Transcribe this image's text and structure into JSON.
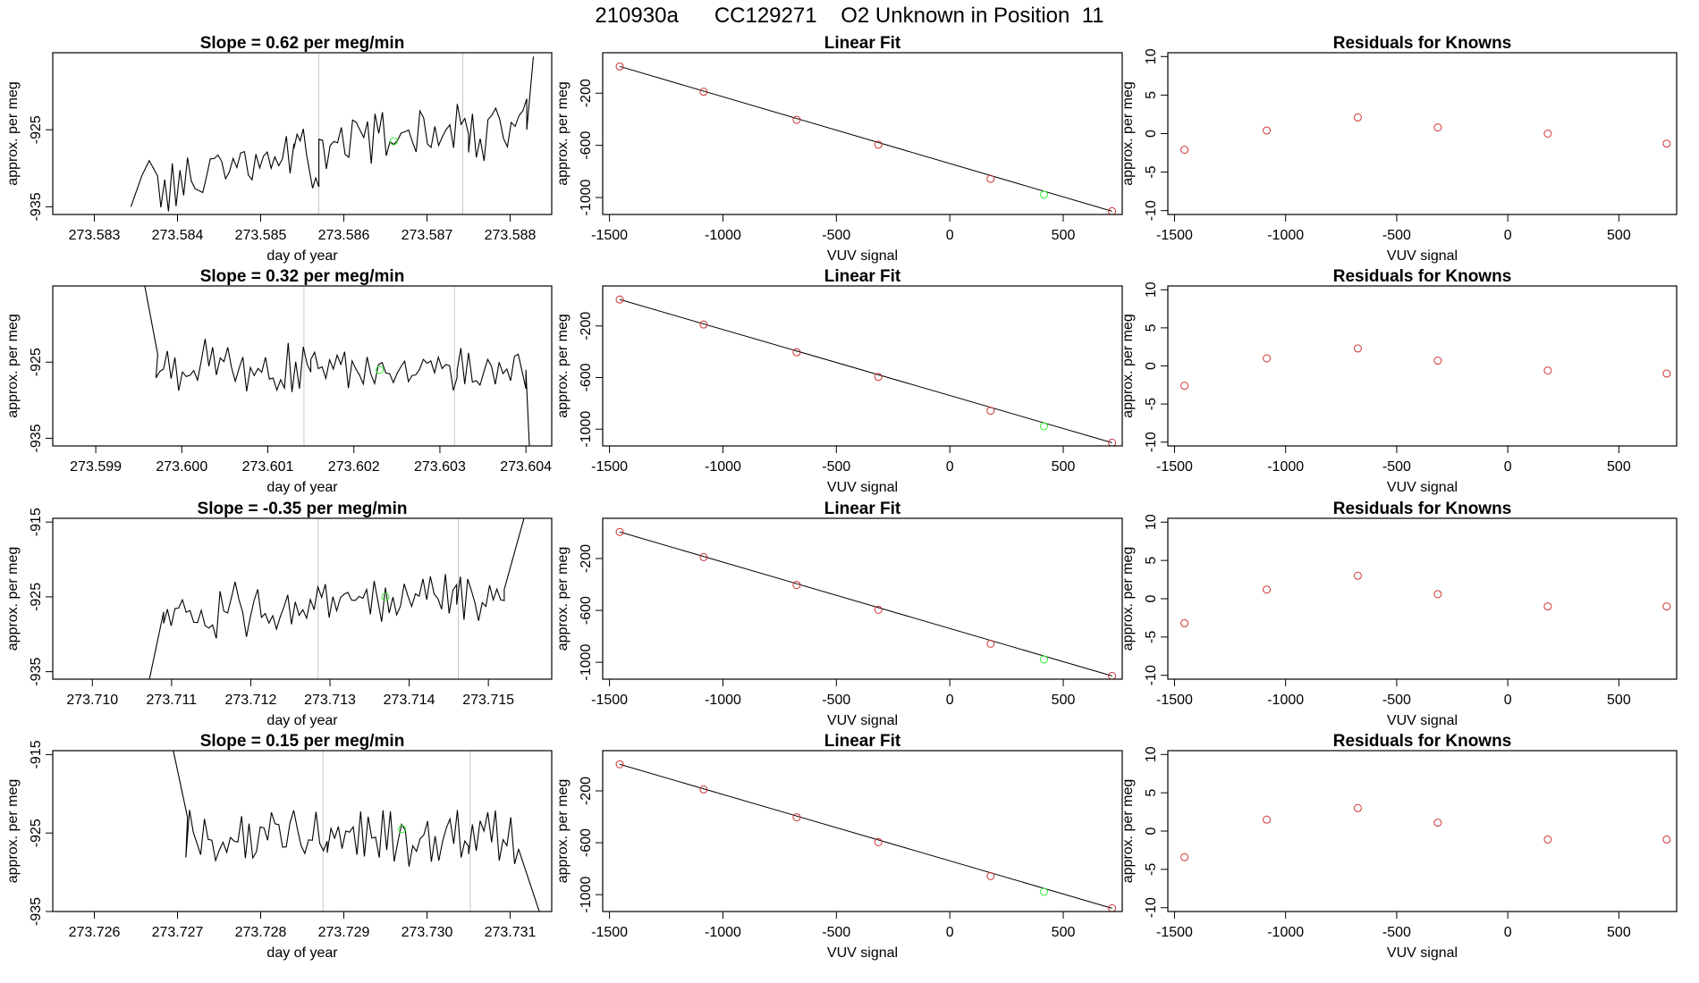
{
  "header": {
    "run_id": "210930a",
    "cylinder": "CC129271",
    "description": "O2 Unknown in Position  11"
  },
  "colors": {
    "trace": "#000000",
    "known_point": "#cd3333",
    "unknown_point": "#33ee33",
    "marker_line": "#c8c8c8"
  },
  "chart_data": [
    {
      "type": "line",
      "panel": "time-series-1",
      "title": "Slope =  0.62  per meg/min",
      "xlabel": "day of year",
      "ylabel": "approx. per meg",
      "xlim": [
        273.5825,
        273.5885
      ],
      "ylim": [
        -936,
        -915
      ],
      "xticks": [
        "273.583",
        "273.584",
        "273.585",
        "273.586",
        "273.587",
        "273.588"
      ],
      "yticks": [
        "-925",
        "-935"
      ],
      "markers": [
        273.5857,
        273.58743
      ],
      "unknown_point": {
        "x": 273.5866,
        "y": -926.5
      },
      "segments": [
        {
          "x": [
            273.58344,
            273.58357,
            273.58366,
            273.58376
          ],
          "y": [
            -935,
            -931,
            -929,
            -931
          ]
        },
        {
          "x": [
            273.5838,
            273.5854
          ],
          "y": [
            -933,
            -928
          ]
        },
        {
          "x": [
            273.5854,
            273.5857
          ],
          "y": [
            -928,
            -929.5
          ]
        },
        {
          "x": [
            273.5857,
            273.5875
          ],
          "y": [
            -927,
            -925
          ]
        },
        {
          "x": [
            273.5875,
            273.5882
          ],
          "y": [
            -926,
            -924
          ]
        }
      ],
      "tail": {
        "x": [
          273.5882,
          273.58828
        ],
        "y": [
          -925,
          -915.5
        ]
      }
    },
    {
      "type": "line",
      "panel": "time-series-2",
      "title": "Slope =  0.32  per meg/min",
      "xlabel": "day of year",
      "ylabel": "approx. per meg",
      "xlim": [
        273.5985,
        273.6043
      ],
      "ylim": [
        -936,
        -915
      ],
      "xticks": [
        "273.599",
        "273.600",
        "273.601",
        "273.602",
        "273.603",
        "273.604"
      ],
      "yticks": [
        "-925",
        "-935"
      ],
      "markers": [
        273.60142,
        273.60317
      ],
      "unknown_point": {
        "x": 273.6023,
        "y": -926
      },
      "head": {
        "x": [
          273.59957,
          273.59972
        ],
        "y": [
          -915,
          -924
        ]
      },
      "segments": [
        {
          "x": [
            273.5997,
            273.6015
          ],
          "y": [
            -925.5,
            -926
          ]
        },
        {
          "x": [
            273.6015,
            273.6032
          ],
          "y": [
            -926.5,
            -925.5
          ]
        },
        {
          "x": [
            273.6032,
            273.604
          ],
          "y": [
            -926,
            -925.5
          ]
        }
      ],
      "tail": {
        "x": [
          273.604,
          273.60404
        ],
        "y": [
          -926,
          -936
        ]
      }
    },
    {
      "type": "line",
      "panel": "time-series-3",
      "title": "Slope =  -0.35  per meg/min",
      "xlabel": "day of year",
      "ylabel": "approx. per meg",
      "xlim": [
        273.7095,
        273.7158
      ],
      "ylim": [
        -936,
        -914.5
      ],
      "xticks": [
        "273.710",
        "273.711",
        "273.712",
        "273.713",
        "273.714",
        "273.715"
      ],
      "yticks": [
        "-915",
        "-925",
        "-935"
      ],
      "markers": [
        273.71285,
        273.71462
      ],
      "unknown_point": {
        "x": 273.7137,
        "y": -925
      },
      "head": {
        "x": [
          273.71072,
          273.7109
        ],
        "y": [
          -936,
          -927
        ]
      },
      "segments": [
        {
          "x": [
            273.7109,
            273.7128
          ],
          "y": [
            -927.5,
            -926
          ]
        },
        {
          "x": [
            273.7128,
            273.7146
          ],
          "y": [
            -925.5,
            -925
          ]
        },
        {
          "x": [
            273.7146,
            273.7152
          ],
          "y": [
            -926,
            -924
          ]
        }
      ],
      "tail": {
        "x": [
          273.7152,
          273.71545
        ],
        "y": [
          -924,
          -914.5
        ]
      }
    },
    {
      "type": "line",
      "panel": "time-series-4",
      "title": "Slope =  0.15  per meg/min",
      "xlabel": "day of year",
      "ylabel": "approx. per meg",
      "xlim": [
        273.7255,
        273.7315
      ],
      "ylim": [
        -935,
        -914.5
      ],
      "xticks": [
        "273.726",
        "273.727",
        "273.728",
        "273.729",
        "273.730",
        "273.731"
      ],
      "yticks": [
        "-915",
        "-925",
        "-935"
      ],
      "markers": [
        273.72875,
        273.73052
      ],
      "unknown_point": {
        "x": 273.7297,
        "y": -924.5
      },
      "head": {
        "x": [
          273.72695,
          273.72712
        ],
        "y": [
          -914.5,
          -923
        ]
      },
      "segments": [
        {
          "x": [
            273.7271,
            273.7288
          ],
          "y": [
            -926,
            -925
          ]
        },
        {
          "x": [
            273.7288,
            273.7305
          ],
          "y": [
            -925.5,
            -925
          ]
        },
        {
          "x": [
            273.7305,
            273.7311
          ],
          "y": [
            -925,
            -926
          ]
        }
      ],
      "tail": {
        "x": [
          273.7311,
          273.73135
        ],
        "y": [
          -927,
          -935
        ]
      }
    },
    {
      "type": "scatter",
      "panel": "linear-fit-1",
      "title": "Linear Fit",
      "xlabel": "VUV signal",
      "ylabel": "approx. per meg",
      "xlim": [
        -1530,
        760
      ],
      "ylim": [
        -1130,
        110
      ],
      "xticks": [
        "-1500",
        "-1000",
        "-500",
        "0",
        "500"
      ],
      "yticks": [
        "-200",
        "-600",
        "-1000"
      ],
      "fit_line": {
        "x": [
          -1455,
          715
        ],
        "y": [
          5,
          -1105
        ]
      },
      "knowns": {
        "x": [
          -1455,
          -1085,
          -675,
          -315,
          180,
          715
        ],
        "y": [
          5,
          -189,
          -404,
          -595,
          -857,
          -1105
        ]
      },
      "unknown": {
        "x": 415,
        "y": -978
      }
    },
    {
      "type": "scatter",
      "panel": "linear-fit-2",
      "title": "Linear Fit",
      "xlabel": "VUV signal",
      "ylabel": "approx. per meg",
      "xlim": [
        -1530,
        760
      ],
      "ylim": [
        -1130,
        110
      ],
      "xticks": [
        "-1500",
        "-1000",
        "-500",
        "0",
        "500"
      ],
      "yticks": [
        "-200",
        "-600",
        "-1000"
      ],
      "fit_line": {
        "x": [
          -1455,
          715
        ],
        "y": [
          5,
          -1105
        ]
      },
      "knowns": {
        "x": [
          -1455,
          -1085,
          -675,
          -315,
          180,
          715
        ],
        "y": [
          5,
          -189,
          -404,
          -595,
          -857,
          -1105
        ]
      },
      "unknown": {
        "x": 415,
        "y": -978
      }
    },
    {
      "type": "scatter",
      "panel": "linear-fit-3",
      "title": "Linear Fit",
      "xlabel": "VUV signal",
      "ylabel": "approx. per meg",
      "xlim": [
        -1530,
        760
      ],
      "ylim": [
        -1130,
        110
      ],
      "xticks": [
        "-1500",
        "-1000",
        "-500",
        "0",
        "500"
      ],
      "yticks": [
        "-200",
        "-600",
        "-1000"
      ],
      "fit_line": {
        "x": [
          -1455,
          715
        ],
        "y": [
          5,
          -1105
        ]
      },
      "knowns": {
        "x": [
          -1455,
          -1085,
          -675,
          -315,
          180,
          715
        ],
        "y": [
          5,
          -189,
          -404,
          -595,
          -857,
          -1105
        ]
      },
      "unknown": {
        "x": 415,
        "y": -978
      }
    },
    {
      "type": "scatter",
      "panel": "linear-fit-4",
      "title": "Linear Fit",
      "xlabel": "VUV signal",
      "ylabel": "approx. per meg",
      "xlim": [
        -1530,
        760
      ],
      "ylim": [
        -1130,
        110
      ],
      "xticks": [
        "-1500",
        "-1000",
        "-500",
        "0",
        "500"
      ],
      "yticks": [
        "-200",
        "-600",
        "-1000"
      ],
      "fit_line": {
        "x": [
          -1455,
          715
        ],
        "y": [
          5,
          -1105
        ]
      },
      "knowns": {
        "x": [
          -1455,
          -1085,
          -675,
          -315,
          180,
          715
        ],
        "y": [
          5,
          -189,
          -404,
          -595,
          -857,
          -1105
        ]
      },
      "unknown": {
        "x": 415,
        "y": -978
      }
    },
    {
      "type": "scatter",
      "panel": "residuals-1",
      "title": "Residuals for Knowns",
      "xlabel": "VUV signal",
      "ylabel": "approx. per meg",
      "xlim": [
        -1530,
        760
      ],
      "ylim": [
        -10.5,
        10.5
      ],
      "xticks": [
        "-1500",
        "-1000",
        "-500",
        "0",
        "500"
      ],
      "yticks": [
        "10",
        "5",
        "0",
        "-5",
        "-10"
      ],
      "x": [
        -1455,
        -1085,
        -675,
        -315,
        180,
        715
      ],
      "y": [
        -2.1,
        0.4,
        2.1,
        0.8,
        0.0,
        -1.3
      ]
    },
    {
      "type": "scatter",
      "panel": "residuals-2",
      "title": "Residuals for Knowns",
      "xlabel": "VUV signal",
      "ylabel": "approx. per meg",
      "xlim": [
        -1530,
        760
      ],
      "ylim": [
        -10.5,
        10.5
      ],
      "xticks": [
        "-1500",
        "-1000",
        "-500",
        "0",
        "500"
      ],
      "yticks": [
        "10",
        "5",
        "0",
        "-5",
        "-10"
      ],
      "x": [
        -1455,
        -1085,
        -675,
        -315,
        180,
        715
      ],
      "y": [
        -2.6,
        1.0,
        2.3,
        0.7,
        -0.6,
        -1.0
      ]
    },
    {
      "type": "scatter",
      "panel": "residuals-3",
      "title": "Residuals for Knowns",
      "xlabel": "VUV signal",
      "ylabel": "approx. per meg",
      "xlim": [
        -1530,
        760
      ],
      "ylim": [
        -10.5,
        10.5
      ],
      "xticks": [
        "-1500",
        "-1000",
        "-500",
        "0",
        "500"
      ],
      "yticks": [
        "10",
        "5",
        "0",
        "-5",
        "-10"
      ],
      "x": [
        -1455,
        -1085,
        -675,
        -315,
        180,
        715
      ],
      "y": [
        -3.2,
        1.2,
        3.0,
        0.6,
        -1.0,
        -1.0
      ]
    },
    {
      "type": "scatter",
      "panel": "residuals-4",
      "title": "Residuals for Knowns",
      "xlabel": "VUV signal",
      "ylabel": "approx. per meg",
      "xlim": [
        -1530,
        760
      ],
      "ylim": [
        -10.5,
        10.5
      ],
      "xticks": [
        "-1500",
        "-1000",
        "-500",
        "0",
        "500"
      ],
      "yticks": [
        "10",
        "5",
        "0",
        "-5",
        "-10"
      ],
      "x": [
        -1455,
        -1085,
        -675,
        -315,
        180,
        715
      ],
      "y": [
        -3.4,
        1.5,
        3.0,
        1.1,
        -1.1,
        -1.1
      ]
    }
  ]
}
